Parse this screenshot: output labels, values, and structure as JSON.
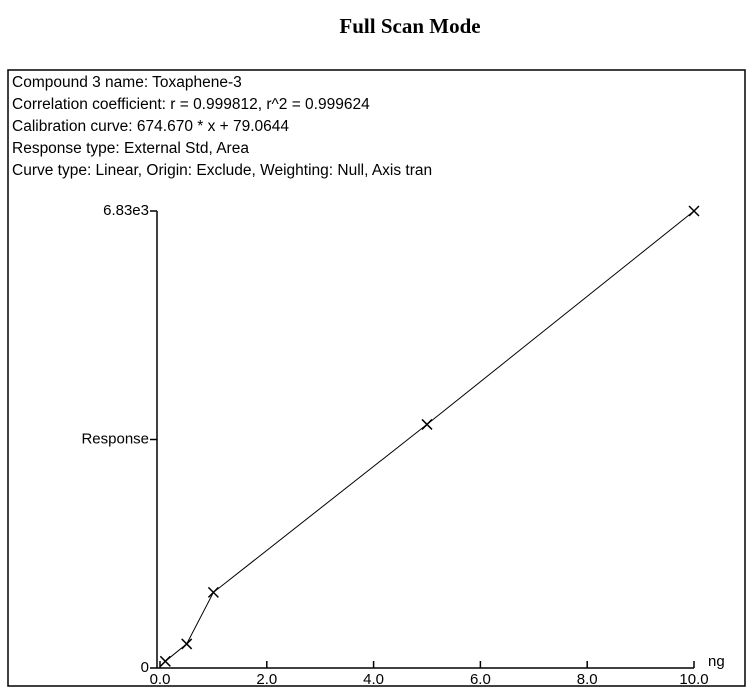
{
  "chart_data": {
    "type": "scatter",
    "title": "Full Scan Mode",
    "header": [
      "Compound 3 name: Toxaphene-3",
      "Correlation coefficient: r = 0.999812, r^2 = 0.999624",
      "Calibration curve: 674.670 * x + 79.0644",
      "Response type: External Std, Area",
      "Curve type: Linear, Origin: Exclude, Weighting: Null, Axis tran"
    ],
    "y_label": "Response",
    "x_label": "ng",
    "series": [
      {
        "name": "Toxaphene-3",
        "color": "#000000",
        "x": [
          0.1,
          0.5,
          1.0,
          5.0,
          10.0
        ],
        "values": [
          100,
          360,
          1130,
          3640,
          6830
        ]
      }
    ],
    "xlim": [
      0,
      10
    ],
    "xticks": [
      {
        "value": 0,
        "label": "0.0"
      },
      {
        "value": 2,
        "label": "2.0"
      },
      {
        "value": 4,
        "label": "4.0"
      },
      {
        "value": 6,
        "label": "6.0"
      },
      {
        "value": 8,
        "label": "8.0"
      },
      {
        "value": 10,
        "label": "10.0"
      }
    ],
    "ylim": [
      0,
      6830
    ],
    "yticks": [
      0,
      {
        "value": 6830,
        "label": "6.83e3"
      }
    ]
  }
}
